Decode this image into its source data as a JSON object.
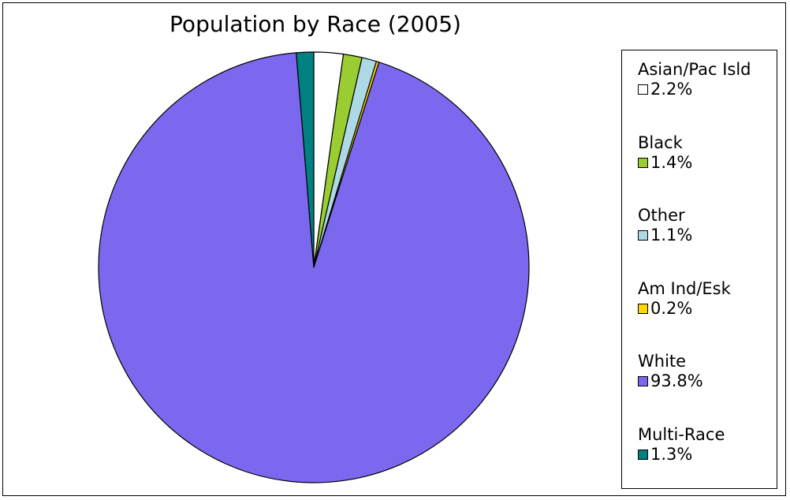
{
  "chart_data": {
    "type": "pie",
    "title": "Population by Race (2005)",
    "slices": [
      {
        "label": "Asian/Pac Isld",
        "value": 2.2,
        "display": "2.2%",
        "color": "#ffffff"
      },
      {
        "label": "Black",
        "value": 1.4,
        "display": "1.4%",
        "color": "#9acd32"
      },
      {
        "label": "Other",
        "value": 1.1,
        "display": "1.1%",
        "color": "#add8e6"
      },
      {
        "label": "Am Ind/Esk",
        "value": 0.2,
        "display": "0.2%",
        "color": "#ffd700"
      },
      {
        "label": "White",
        "value": 93.8,
        "display": "93.8%",
        "color": "#7b68ee"
      },
      {
        "label": "Multi-Race",
        "value": 1.3,
        "display": "1.3%",
        "color": "#008080"
      }
    ],
    "start_angle": "12 o'clock",
    "direction": "clockwise",
    "legend_position": "right"
  }
}
